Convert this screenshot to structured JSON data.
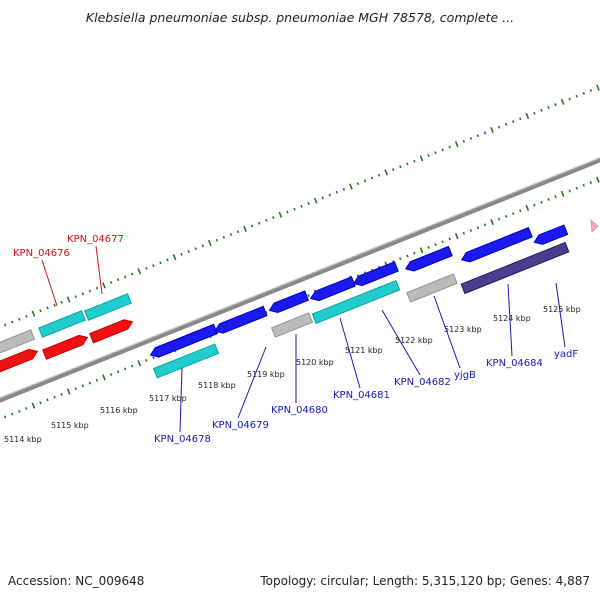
{
  "title": "Klebsiella pneumoniae subsp. pneumoniae MGH 78578, complete ...",
  "footer": {
    "accession": "Accession: NC_009648",
    "summary": "Topology: circular; Length: 5,315,120 bp; Genes: 4,887"
  },
  "colors": {
    "forward_cds": "#1a1aee",
    "reverse_cds": "#ee1111",
    "rna": "#22cccc",
    "gene": "#bbbbbb",
    "other": "#4a3f8f",
    "tick": "#1f7a1f",
    "backbone": "#888888",
    "label_blue": "#1818b8",
    "label_red": "#cc1111",
    "marker": "#f6a8c8"
  },
  "scale": {
    "ticks": [
      {
        "label": "5114 kbp",
        "kbp": 5114
      },
      {
        "label": "5115 kbp",
        "kbp": 5115
      },
      {
        "label": "5116 kbp",
        "kbp": 5116
      },
      {
        "label": "5117 kbp",
        "kbp": 5117
      },
      {
        "label": "5118 kbp",
        "kbp": 5118
      },
      {
        "label": "5119 kbp",
        "kbp": 5119
      },
      {
        "label": "5120 kbp",
        "kbp": 5120
      },
      {
        "label": "5121 kbp",
        "kbp": 5121
      },
      {
        "label": "5122 kbp",
        "kbp": 5122
      },
      {
        "label": "5123 kbp",
        "kbp": 5123
      },
      {
        "label": "5124 kbp",
        "kbp": 5124
      },
      {
        "label": "5125 kbp",
        "kbp": 5125
      }
    ]
  },
  "gene_labels": {
    "above": [
      {
        "name": "KPN_04676",
        "color_key": "label_red"
      },
      {
        "name": "KPN_04677",
        "color_key": "label_red"
      }
    ],
    "below": [
      {
        "name": "KPN_04678",
        "color_key": "label_blue"
      },
      {
        "name": "KPN_04679",
        "color_key": "label_blue"
      },
      {
        "name": "KPN_04680",
        "color_key": "label_blue"
      },
      {
        "name": "KPN_04681",
        "color_key": "label_blue"
      },
      {
        "name": "KPN_04682",
        "color_key": "label_blue"
      },
      {
        "name": "yjgB",
        "color_key": "label_blue"
      },
      {
        "name": "KPN_04684",
        "color_key": "label_blue"
      },
      {
        "name": "yadF",
        "color_key": "label_blue"
      }
    ]
  }
}
